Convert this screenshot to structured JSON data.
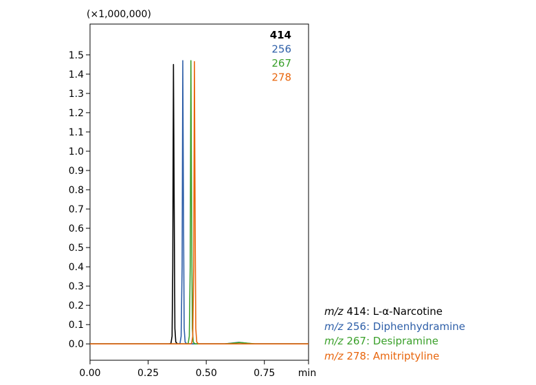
{
  "chart_data": {
    "type": "line",
    "y_multiplier_label": "(×1,000,000)",
    "x_unit_label": "min",
    "x_ticks": [
      "0.00",
      "0.25",
      "0.50",
      "0.75"
    ],
    "x_tick_values": [
      0.0,
      0.25,
      0.5,
      0.75
    ],
    "y_ticks": [
      "0.0",
      "0.1",
      "0.2",
      "0.3",
      "0.4",
      "0.5",
      "0.6",
      "0.7",
      "0.8",
      "0.9",
      "1.0",
      "1.1",
      "1.2",
      "1.3",
      "1.4",
      "1.5"
    ],
    "y_tick_values": [
      0.0,
      0.1,
      0.2,
      0.3,
      0.4,
      0.5,
      0.6,
      0.7,
      0.8,
      0.9,
      1.0,
      1.1,
      1.2,
      1.3,
      1.4,
      1.5
    ],
    "xlim": [
      0.0,
      0.94
    ],
    "ylim": [
      -0.085,
      1.66
    ],
    "grid": false,
    "series": [
      {
        "name": "414",
        "color": "#000000",
        "x": [
          0.0,
          0.34,
          0.348,
          0.353,
          0.356,
          0.359,
          0.362,
          0.365,
          0.369,
          0.376,
          0.94
        ],
        "y": [
          0.0,
          0.0,
          0.002,
          0.04,
          0.4,
          1.45,
          0.7,
          0.08,
          0.01,
          0.0,
          0.0
        ]
      },
      {
        "name": "256",
        "color": "#2e5fa8",
        "x": [
          0.0,
          0.38,
          0.387,
          0.392,
          0.396,
          0.399,
          0.402,
          0.405,
          0.409,
          0.416,
          0.58,
          0.61,
          0.64,
          0.67,
          0.7,
          0.94
        ],
        "y": [
          0.0,
          0.0,
          0.002,
          0.04,
          0.4,
          1.47,
          0.7,
          0.08,
          0.01,
          0.0,
          0.0,
          0.004,
          0.008,
          0.004,
          0.0,
          0.0
        ]
      },
      {
        "name": "267",
        "color": "#3aa02a",
        "x": [
          0.0,
          0.415,
          0.422,
          0.427,
          0.431,
          0.434,
          0.437,
          0.44,
          0.444,
          0.451,
          0.58,
          0.61,
          0.645,
          0.68,
          0.71,
          0.94
        ],
        "y": [
          0.0,
          0.0,
          0.002,
          0.04,
          0.4,
          1.47,
          0.7,
          0.08,
          0.01,
          0.0,
          0.0,
          0.003,
          0.007,
          0.003,
          0.0,
          0.0
        ]
      },
      {
        "name": "278",
        "color": "#e8650c",
        "x": [
          0.0,
          0.43,
          0.437,
          0.442,
          0.446,
          0.449,
          0.452,
          0.455,
          0.459,
          0.466,
          0.94
        ],
        "y": [
          0.0,
          0.0,
          0.002,
          0.04,
          0.4,
          1.465,
          0.7,
          0.08,
          0.01,
          0.0,
          0.0
        ]
      }
    ]
  },
  "legend_entries": [
    {
      "mz": "m/z",
      "text": " 414: L-α-Narcotine",
      "color": "#000000"
    },
    {
      "mz": "m/z",
      "text": " 256: Diphenhydramine",
      "color": "#2e5fa8"
    },
    {
      "mz": "m/z",
      "text": " 267: Desipramine",
      "color": "#3aa02a"
    },
    {
      "mz": "m/z",
      "text": " 278: Amitriptyline",
      "color": "#e8650c"
    }
  ]
}
